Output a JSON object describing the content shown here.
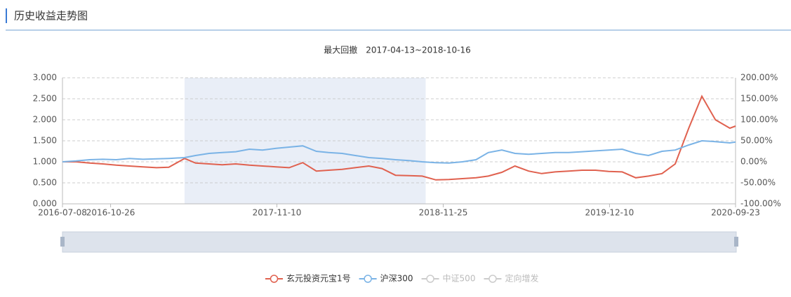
{
  "header": {
    "title": "历史收益走势图"
  },
  "chart_data": {
    "type": "line",
    "subtitle": "最大回撤　2017-04-13~2018-10-16",
    "shade": [
      "2017-04-13",
      "2018-10-16"
    ],
    "x": [
      "2016-07-08",
      "2016-08-08",
      "2016-09-08",
      "2016-10-08",
      "2016-11-08",
      "2016-12-08",
      "2017-01-08",
      "2017-02-08",
      "2017-03-08",
      "2017-04-13",
      "2017-05-08",
      "2017-06-08",
      "2017-07-08",
      "2017-08-08",
      "2017-09-08",
      "2017-10-08",
      "2017-11-08",
      "2017-12-08",
      "2018-01-08",
      "2018-02-08",
      "2018-03-08",
      "2018-04-08",
      "2018-05-08",
      "2018-06-08",
      "2018-07-08",
      "2018-08-08",
      "2018-09-08",
      "2018-10-08",
      "2018-11-08",
      "2018-12-08",
      "2019-01-08",
      "2019-02-08",
      "2019-03-08",
      "2019-04-08",
      "2019-05-08",
      "2019-06-08",
      "2019-07-08",
      "2019-08-08",
      "2019-09-08",
      "2019-10-08",
      "2019-11-08",
      "2019-12-08",
      "2020-01-08",
      "2020-02-08",
      "2020-03-08",
      "2020-04-08",
      "2020-05-08",
      "2020-06-08",
      "2020-07-08",
      "2020-08-08",
      "2020-09-10",
      "2020-09-23"
    ],
    "xlim": [
      "2016-07-08",
      "2020-09-23"
    ],
    "xticks": [
      "2016-07-08",
      "2016-10-26",
      "2017-11-10",
      "2018-11-25",
      "2019-12-10",
      "2020-09-23"
    ],
    "series": [
      {
        "name": "玄元投资元宝1号",
        "color": "#e0614f",
        "values": [
          1.0,
          1.0,
          0.97,
          0.95,
          0.92,
          0.9,
          0.88,
          0.86,
          0.87,
          1.08,
          0.97,
          0.95,
          0.93,
          0.95,
          0.92,
          0.9,
          0.88,
          0.86,
          0.98,
          0.78,
          0.8,
          0.82,
          0.86,
          0.9,
          0.84,
          0.68,
          0.67,
          0.66,
          0.57,
          0.58,
          0.6,
          0.62,
          0.66,
          0.75,
          0.9,
          0.78,
          0.72,
          0.76,
          0.78,
          0.8,
          0.8,
          0.77,
          0.76,
          0.62,
          0.66,
          0.72,
          0.95,
          1.8,
          2.56,
          2.0,
          1.8,
          1.85
        ]
      },
      {
        "name": "沪深300",
        "color": "#7ab3e6",
        "values": [
          1.0,
          1.02,
          1.05,
          1.06,
          1.05,
          1.08,
          1.06,
          1.07,
          1.08,
          1.1,
          1.15,
          1.2,
          1.22,
          1.24,
          1.3,
          1.28,
          1.32,
          1.35,
          1.38,
          1.25,
          1.22,
          1.2,
          1.15,
          1.1,
          1.08,
          1.05,
          1.03,
          1.0,
          0.98,
          0.97,
          1.0,
          1.05,
          1.22,
          1.28,
          1.2,
          1.18,
          1.2,
          1.22,
          1.22,
          1.24,
          1.26,
          1.28,
          1.3,
          1.2,
          1.15,
          1.25,
          1.28,
          1.4,
          1.5,
          1.48,
          1.45,
          1.47
        ]
      }
    ],
    "hidden_series": [
      {
        "name": "中证500",
        "color": "#cccccc"
      },
      {
        "name": "定向增发",
        "color": "#cccccc"
      }
    ],
    "ylim": [
      0,
      3
    ],
    "yticks": [
      {
        "value": 0,
        "label": "0.000"
      },
      {
        "value": 0.5,
        "label": "0.500"
      },
      {
        "value": 1,
        "label": "1.000"
      },
      {
        "value": 1.5,
        "label": "1.500"
      },
      {
        "value": 2,
        "label": "2.000"
      },
      {
        "value": 2.5,
        "label": "2.500"
      },
      {
        "value": 3,
        "label": "3.000"
      }
    ],
    "y2lim": [
      -100,
      200
    ],
    "y2ticks": [
      {
        "value": -100,
        "label": "-100.00%"
      },
      {
        "value": -50,
        "label": "-50.00%"
      },
      {
        "value": 0,
        "label": "0.00%"
      },
      {
        "value": 50,
        "label": "50.00%"
      },
      {
        "value": 100,
        "label": "100.00%"
      },
      {
        "value": 150,
        "label": "150.00%"
      },
      {
        "value": 200,
        "label": "200.00%"
      }
    ],
    "grid": true
  }
}
